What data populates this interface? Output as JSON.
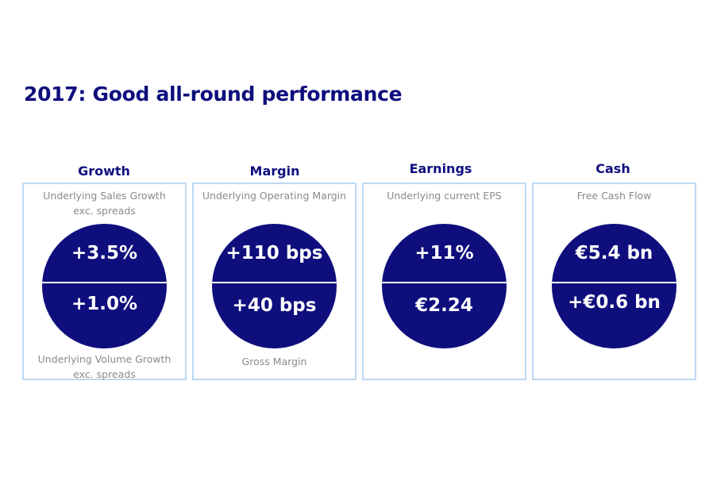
{
  "title": "2017: Good all-round performance",
  "colors": {
    "navy": "#0f0e7d",
    "card_border": "#bcd8f2",
    "caption_grey": "#8a8a8a"
  },
  "cards": [
    {
      "heading": "Growth",
      "top_caption": [
        "Underlying Sales Growth",
        "exc. spreads"
      ],
      "top_value": "+3.5%",
      "bottom_value": "+1.0%",
      "bottom_caption": [
        "Underlying Volume Growth",
        "exc. spreads"
      ]
    },
    {
      "heading": "Margin",
      "top_caption": [
        "Underlying Operating Margin"
      ],
      "top_value": "+110 bps",
      "bottom_value": "+40 bps",
      "bottom_caption": [
        "Gross Margin"
      ]
    },
    {
      "heading": "Earnings",
      "top_caption": [
        "Underlying current EPS"
      ],
      "top_value": "+11%",
      "bottom_value": "€2.24"
    },
    {
      "heading": "Cash",
      "top_caption": [
        "Free Cash Flow"
      ],
      "top_value": "€5.4 bn",
      "bottom_value": "+€0.6 bn"
    }
  ]
}
